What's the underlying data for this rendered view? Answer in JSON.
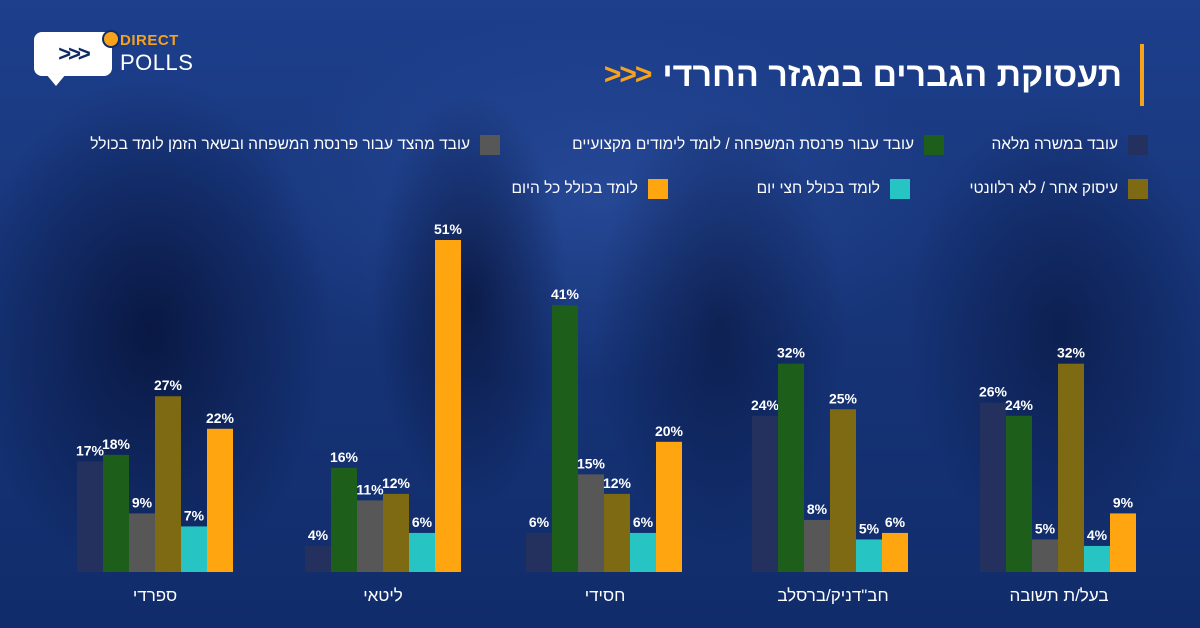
{
  "brand": {
    "line1": "DIRECT",
    "line2": "POLLS"
  },
  "title": "תעסוקת הגברים במגזר החרדי",
  "title_arrows": ">>>",
  "chart_data": {
    "type": "bar",
    "title": "תעסוקת הגברים במגזר החרדי",
    "categories": [
      "ספרדי",
      "ליטאי",
      "חסידי",
      "חב\"דניק/ברסלב",
      "בעל/ת תשובה"
    ],
    "series": [
      {
        "name": "עובד במשרה מלאה",
        "color": "#24305e",
        "values": [
          17,
          4,
          6,
          24,
          26
        ]
      },
      {
        "name": "עובד עבור פרנסת המשפחה / לומד לימודים מקצועיים",
        "color": "#1d5e1b",
        "values": [
          18,
          16,
          41,
          32,
          24
        ]
      },
      {
        "name": "עובד מהצד עבור פרנסת המשפחה ובשאר הזמן לומד בכולל",
        "color": "#575757",
        "values": [
          9,
          11,
          15,
          8,
          5
        ]
      },
      {
        "name": "עיסוק אחר / לא רלוונטי",
        "color": "#7d6a12",
        "values": [
          27,
          12,
          12,
          25,
          32
        ]
      },
      {
        "name": "לומד בכולל חצי יום",
        "color": "#27c4c4",
        "values": [
          7,
          6,
          6,
          5,
          4
        ]
      },
      {
        "name": "לומד בכולל כל היום",
        "color": "#ffa510",
        "values": [
          22,
          51,
          20,
          6,
          9
        ]
      }
    ],
    "value_suffix": "%",
    "ylim": [
      0,
      51
    ],
    "legend": "top-right"
  }
}
